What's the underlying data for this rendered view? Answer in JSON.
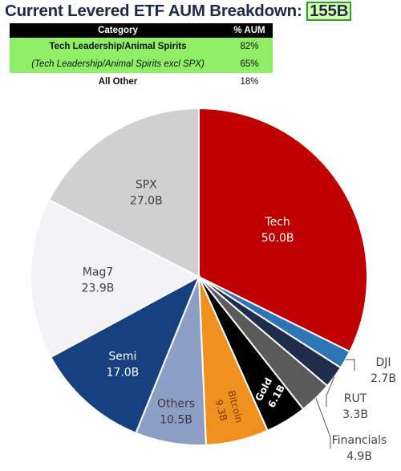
{
  "header": {
    "title": "Current Levered ETF AUM Breakdown:",
    "total": "155B"
  },
  "table": {
    "headers": [
      "Category",
      "% AUM"
    ],
    "rows": [
      {
        "category": "Tech Leadership/Animal Spirits",
        "pct": "82%",
        "highlight": true,
        "style": "bold"
      },
      {
        "category": "(Tech Leadership/Animal Spirits excl SPX)",
        "pct": "65%",
        "highlight": true,
        "style": "italic"
      },
      {
        "category": "All Other",
        "pct": "18%",
        "highlight": false,
        "style": "bold"
      }
    ]
  },
  "chart_data": {
    "type": "pie",
    "title": "",
    "slices": [
      {
        "name": "Tech",
        "value": 50.0,
        "label": "50.0B",
        "color": "#c00000"
      },
      {
        "name": "DJI",
        "value": 2.7,
        "label": "2.7B",
        "color": "#2e75b6"
      },
      {
        "name": "RUT",
        "value": 3.3,
        "label": "3.3B",
        "color": "#1f2d4a"
      },
      {
        "name": "Financials",
        "value": 4.9,
        "label": "4.9B",
        "color": "#5a5a5a"
      },
      {
        "name": "Gold",
        "value": 6.1,
        "label": "6.1B",
        "color": "#000000"
      },
      {
        "name": "Bitcoin",
        "value": 9.3,
        "label": "9.3B",
        "color": "#f0901e"
      },
      {
        "name": "Others",
        "value": 10.5,
        "label": "10.5B",
        "color": "#8e9fc6"
      },
      {
        "name": "Semi",
        "value": 17.0,
        "label": "17.0B",
        "color": "#16407f"
      },
      {
        "name": "Mag7",
        "value": 23.9,
        "label": "23.9B",
        "color": "#f2f2f7"
      },
      {
        "name": "SPX",
        "value": 27.0,
        "label": "27.0B",
        "color": "#d0d0d0"
      }
    ]
  }
}
